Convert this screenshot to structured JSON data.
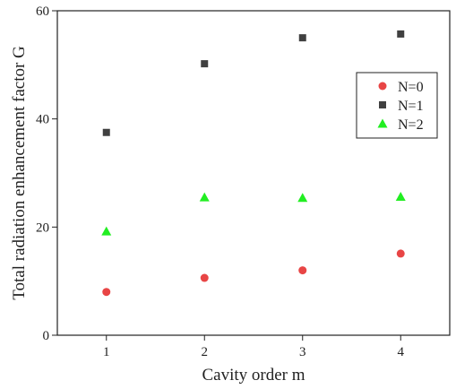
{
  "chart_data": {
    "type": "scatter",
    "xlabel": "Cavity order m",
    "ylabel": "Total radiation enhancement factor G",
    "xlim": [
      0.5,
      4.5
    ],
    "ylim": [
      0,
      60
    ],
    "x_ticks": [
      "1",
      "2",
      "3",
      "4"
    ],
    "y_ticks": [
      "0",
      "20",
      "40",
      "60"
    ],
    "grid": false,
    "legend_placement": "right",
    "series": [
      {
        "name": "N=0",
        "marker": "circle",
        "color": "#e84545",
        "x": [
          1,
          2,
          3,
          4
        ],
        "y": [
          8.0,
          10.6,
          12.0,
          15.1
        ]
      },
      {
        "name": "N=1",
        "marker": "square",
        "color": "#404040",
        "x": [
          1,
          2,
          3,
          4
        ],
        "y": [
          37.5,
          50.2,
          55.0,
          55.7
        ]
      },
      {
        "name": "N=2",
        "marker": "triangle",
        "color": "#22ee22",
        "x": [
          1,
          2,
          3,
          4
        ],
        "y": [
          19.2,
          25.5,
          25.4,
          25.6
        ]
      }
    ]
  }
}
